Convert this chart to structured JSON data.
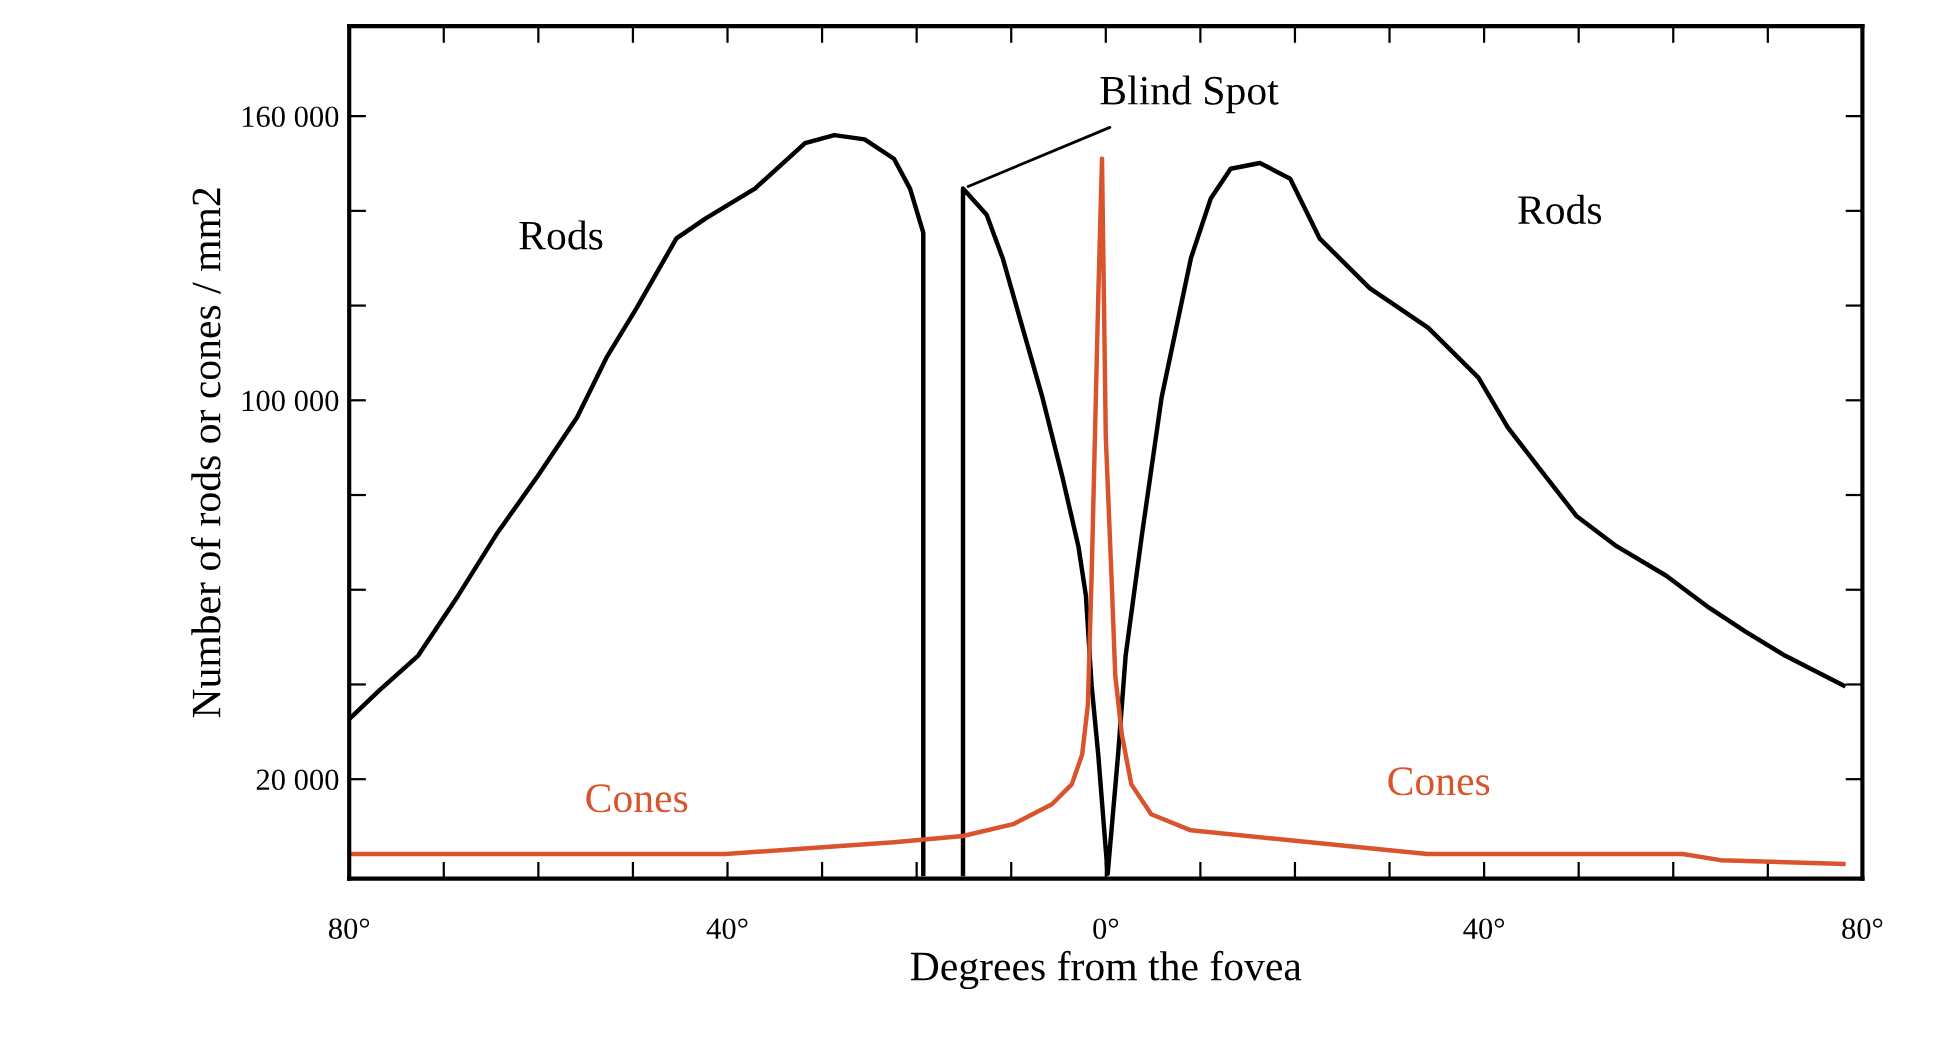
{
  "chart_data": {
    "type": "line",
    "xlabel": "Degrees from the fovea",
    "ylabel": "Number of rods or cones / mm2",
    "xlim": [
      -80,
      80
    ],
    "ylim": [
      -1000,
      179000
    ],
    "xticks": [
      {
        "value": -80,
        "label": "80°"
      },
      {
        "value": -70,
        "label": null
      },
      {
        "value": -60,
        "label": null
      },
      {
        "value": -50,
        "label": null
      },
      {
        "value": -40,
        "label": "40°"
      },
      {
        "value": -30,
        "label": null
      },
      {
        "value": -20,
        "label": null
      },
      {
        "value": -10,
        "label": null
      },
      {
        "value": 0,
        "label": "0°"
      },
      {
        "value": 10,
        "label": null
      },
      {
        "value": 20,
        "label": null
      },
      {
        "value": 30,
        "label": null
      },
      {
        "value": 40,
        "label": "40°"
      },
      {
        "value": 50,
        "label": null
      },
      {
        "value": 60,
        "label": null
      },
      {
        "value": 70,
        "label": null
      },
      {
        "value": 80,
        "label": "80°"
      }
    ],
    "yticks": [
      {
        "value": 20000,
        "label": "20 000"
      },
      {
        "value": 40000,
        "label": null
      },
      {
        "value": 60000,
        "label": null
      },
      {
        "value": 80000,
        "label": null
      },
      {
        "value": 100000,
        "label": "100 000"
      },
      {
        "value": 120000,
        "label": null
      },
      {
        "value": 140000,
        "label": null
      },
      {
        "value": 160000,
        "label": "160 000"
      }
    ],
    "grid": false,
    "legend": false,
    "marker": "none",
    "line_style": "solid",
    "series": [
      {
        "name": "Rods",
        "color": "#000000",
        "x": [
          -80,
          -76.9,
          -72.7,
          -68.5,
          -64.3,
          -60.1,
          -55.9,
          -52.8,
          -49.6,
          -45.4,
          -42.3,
          -37.1,
          -31.8,
          -28.7,
          -25.5,
          -22.4,
          -20.7,
          -19.3,
          -19.3,
          -17.2,
          -15.1,
          -15.1,
          -12.6,
          -10.9,
          -8.8,
          -6.7,
          -4.6,
          -2.9,
          -2.1,
          -1.5,
          -0.8,
          0.2,
          1.3,
          2.1,
          3.8,
          5.9,
          9.0,
          11.1,
          13.2,
          16.3,
          19.5,
          22.6,
          27.9,
          34.1,
          39.4,
          42.5,
          45.7,
          49.8,
          54.0,
          59.3,
          63.5,
          67.6,
          71.8,
          78
        ],
        "values": [
          32700,
          38600,
          46100,
          58700,
          72100,
          83900,
          96400,
          109000,
          119500,
          134200,
          138400,
          144700,
          154300,
          156000,
          155100,
          151000,
          144700,
          135400,
          0,
          null,
          0,
          144700,
          139200,
          130000,
          115300,
          100600,
          83900,
          69200,
          58700,
          39800,
          25200,
          0,
          25200,
          46100,
          71300,
          100600,
          130000,
          142600,
          148900,
          150100,
          146800,
          134200,
          123700,
          115300,
          104800,
          94300,
          86000,
          75500,
          69200,
          62900,
          56600,
          51200,
          46100,
          39800
        ]
      },
      {
        "name": "Cones",
        "color": "#d9542c",
        "x": [
          -80,
          -40.2,
          -22.4,
          -15.1,
          -9.8,
          -5.7,
          -3.6,
          -2.5,
          -1.9,
          -1.5,
          -0.8,
          -0.4,
          0,
          0.6,
          1.0,
          1.7,
          2.7,
          4.8,
          9.0,
          19.5,
          30,
          34,
          61,
          65,
          78
        ],
        "values": [
          4200,
          4200,
          6700,
          8000,
          10500,
          14700,
          18900,
          25200,
          35600,
          62900,
          121600,
          151000,
          92200,
          62900,
          41900,
          29400,
          18900,
          12600,
          9200,
          7100,
          5000,
          4200,
          4200,
          2900,
          2100
        ]
      }
    ],
    "annotations": [
      {
        "text": "Blind Spot",
        "x": -15.1,
        "y": 144700
      }
    ]
  }
}
